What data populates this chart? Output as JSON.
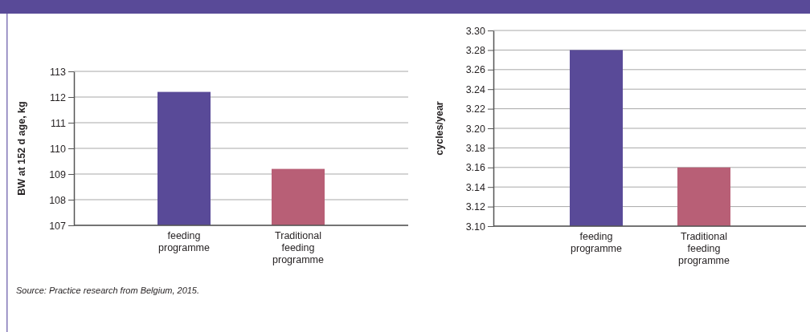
{
  "chart_data": [
    {
      "type": "bar",
      "categories": [
        "feeding programme",
        "Traditional feeding programme"
      ],
      "values": [
        112.2,
        109.2
      ],
      "colors": [
        "#594a98",
        "#b85f76"
      ],
      "ylabel": "BW at 152 d age, kg",
      "ylim": [
        107,
        113
      ],
      "yticks": [
        107,
        108,
        109,
        110,
        111,
        112,
        113
      ],
      "grid": "y",
      "annotations": [
        "Source: Practice research from Belgium, 2015."
      ]
    },
    {
      "type": "bar",
      "categories": [
        "feeding programme",
        "Traditional feeding programme"
      ],
      "values": [
        3.28,
        3.16
      ],
      "colors": [
        "#594a98",
        "#b85f76"
      ],
      "ylabel": "cycles/year",
      "ylim": [
        3.1,
        3.3
      ],
      "yticks": [
        {
          "value": 3.1,
          "label": "3.10"
        },
        3.12,
        3.14,
        3.16,
        3.18,
        {
          "value": 3.2,
          "label": "3.20"
        },
        3.22,
        3.24,
        3.26,
        3.28,
        {
          "value": 3.3,
          "label": "3.30"
        }
      ],
      "grid": "y"
    }
  ]
}
